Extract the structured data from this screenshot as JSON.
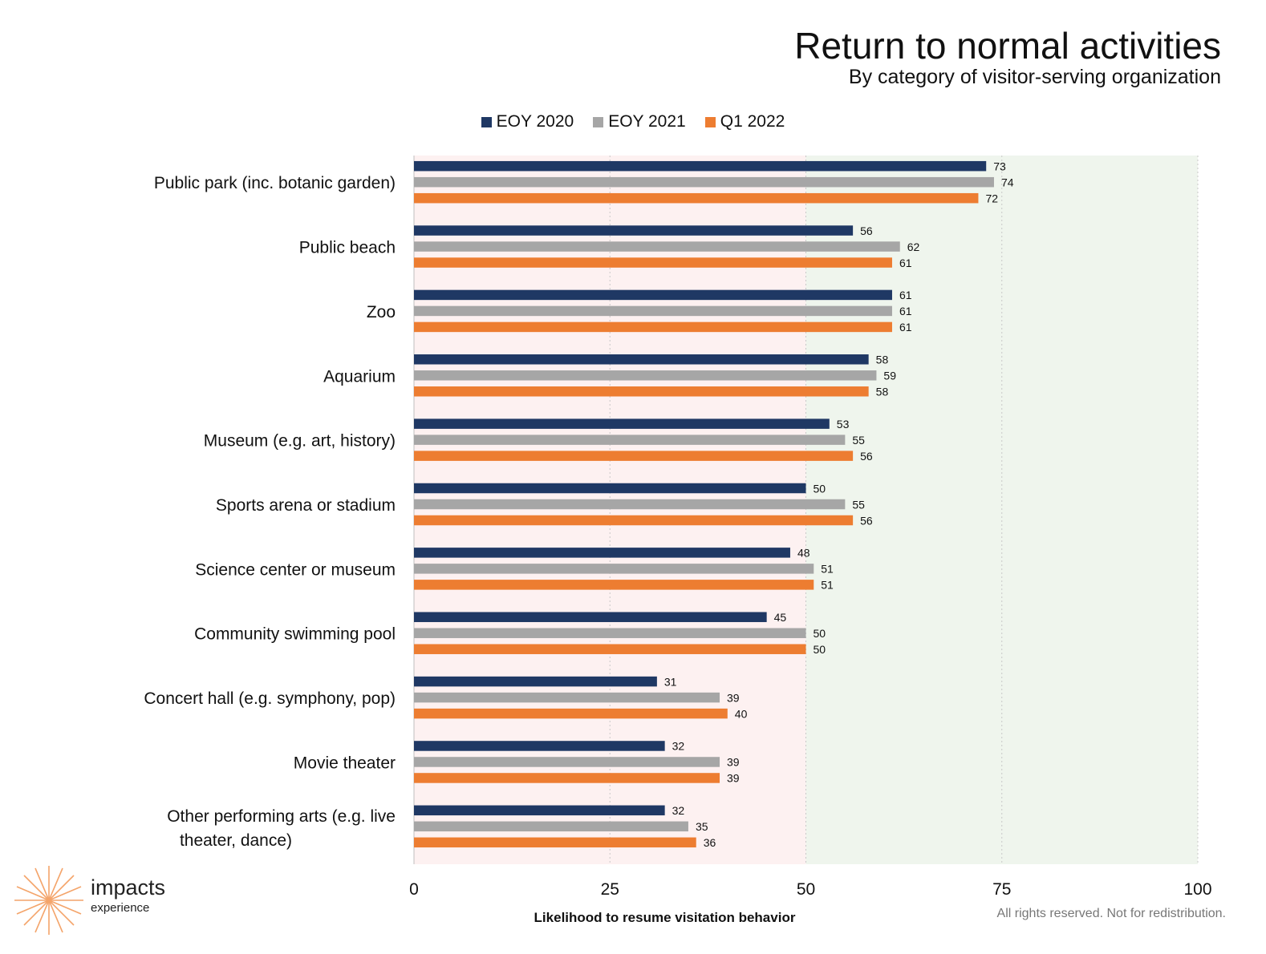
{
  "chart_data": {
    "type": "bar",
    "orientation": "horizontal",
    "title": "Return to normal activities",
    "subtitle": "By category of visitor-serving organization",
    "xlabel": "Likelihood to resume visitation behavior",
    "ylabel": "",
    "xlim": [
      0,
      100
    ],
    "xticks": [
      0,
      25,
      50,
      75,
      100
    ],
    "grid": true,
    "legend_position": "top",
    "background_bands": [
      {
        "from": 0,
        "to": 50,
        "color": "#fdf1f1"
      },
      {
        "from": 50,
        "to": 100,
        "color": "#eff5ed"
      }
    ],
    "categories": [
      "Public park (inc. botanic garden)",
      "Public beach",
      "Zoo",
      "Aquarium",
      "Museum (e.g. art, history)",
      "Sports arena or stadium",
      "Science center or museum",
      "Community swimming pool",
      "Concert hall (e.g. symphony, pop)",
      "Movie theater",
      "Other performing arts (e.g. live theater, dance)"
    ],
    "series": [
      {
        "name": "EOY 2020",
        "color": "#1f3864",
        "values": [
          73,
          56,
          61,
          58,
          53,
          50,
          48,
          45,
          31,
          32,
          32
        ]
      },
      {
        "name": "EOY 2021",
        "color": "#a6a6a6",
        "values": [
          74,
          62,
          61,
          59,
          55,
          55,
          51,
          50,
          39,
          39,
          35
        ]
      },
      {
        "name": "Q1 2022",
        "color": "#ed7d31",
        "values": [
          72,
          61,
          61,
          58,
          56,
          56,
          51,
          50,
          40,
          39,
          36
        ]
      }
    ]
  },
  "branding": {
    "logo_name": "impacts",
    "logo_sub": "experience",
    "logo_color": "#f4a46a",
    "logo_icon": "starburst-icon"
  },
  "footer": "All rights reserved. Not for redistribution."
}
